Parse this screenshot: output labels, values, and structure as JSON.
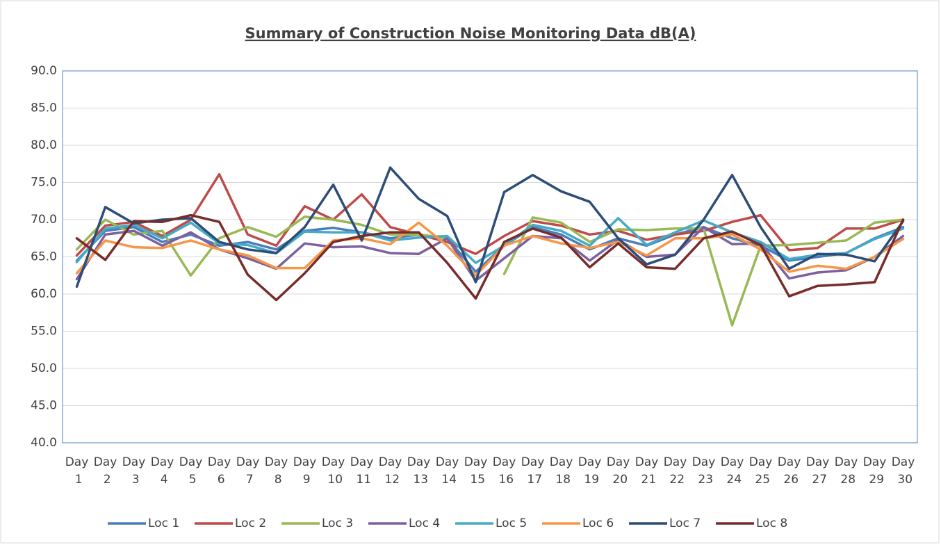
{
  "chart_data": {
    "type": "line",
    "title": "Summary of Construction Noise Monitoring Data dB(A)",
    "categories": [
      "Day 1",
      "Day 2",
      "Day 3",
      "Day 4",
      "Day 5",
      "Day 6",
      "Day 7",
      "Day 8",
      "Day 9",
      "Day 10",
      "Day 11",
      "Day 12",
      "Day 13",
      "Day 14",
      "Day 15",
      "Day 16",
      "Day 17",
      "Day 18",
      "Day 19",
      "Day 20",
      "Day 21",
      "Day 22",
      "Day 23",
      "Day 24",
      "Day 25",
      "Day 26",
      "Day 27",
      "Day 28",
      "Day 29",
      "Day 30"
    ],
    "series": [
      {
        "name": "Loc 1",
        "color": "#4a7ebb",
        "values": [
          64.5,
          68.5,
          69.0,
          67.0,
          68.0,
          66.5,
          67.0,
          66.0,
          68.5,
          68.9,
          68.3,
          67.5,
          68.0,
          67.5,
          63.0,
          66.5,
          69.0,
          68.0,
          66.0,
          67.5,
          66.5,
          68.0,
          69.0,
          67.5,
          66.5,
          64.5,
          65.0,
          65.5,
          67.5,
          69.0
        ]
      },
      {
        "name": "Loc 2",
        "color": "#be4b48",
        "values": [
          65.2,
          69.2,
          69.7,
          67.8,
          70.0,
          76.1,
          68.0,
          66.5,
          71.8,
          70.0,
          73.4,
          69.0,
          68.0,
          67.0,
          65.4,
          67.8,
          69.8,
          69.2,
          68.0,
          68.5,
          67.3,
          68.0,
          68.5,
          69.7,
          70.6,
          65.9,
          66.2,
          68.8,
          68.8,
          70.0
        ]
      },
      {
        "name": "Loc 3",
        "color": "#98b954",
        "values": [
          66.0,
          70.0,
          68.0,
          68.5,
          62.5,
          67.5,
          69.0,
          67.7,
          70.4,
          70.0,
          69.3,
          68.0,
          68.0,
          67.5,
          null,
          62.7,
          70.3,
          69.6,
          67.0,
          68.7,
          68.6,
          68.8,
          68.8,
          55.8,
          66.5,
          66.6,
          66.9,
          67.2,
          69.6,
          70.0
        ]
      },
      {
        "name": "Loc 4",
        "color": "#7d60a0",
        "values": [
          62.0,
          68.0,
          68.5,
          66.5,
          68.3,
          66.0,
          64.8,
          63.4,
          66.8,
          66.3,
          66.4,
          65.5,
          65.4,
          67.5,
          61.8,
          64.8,
          67.8,
          67.5,
          64.5,
          67.3,
          65.0,
          65.3,
          69.0,
          66.7,
          66.8,
          62.1,
          62.9,
          63.2,
          65.0,
          67.8
        ]
      },
      {
        "name": "Loc 5",
        "color": "#46aac5",
        "values": [
          64.3,
          68.8,
          69.3,
          67.5,
          69.6,
          66.8,
          66.6,
          65.5,
          68.4,
          68.3,
          68.3,
          67.2,
          67.6,
          67.8,
          64.2,
          66.5,
          69.3,
          68.5,
          66.5,
          70.2,
          66.6,
          68.3,
          69.9,
          68.3,
          67.0,
          64.7,
          65.3,
          65.5,
          67.4,
          68.8
        ]
      },
      {
        "name": "Loc 6",
        "color": "#f79646",
        "values": [
          62.8,
          67.2,
          66.3,
          66.2,
          67.2,
          66.0,
          65.2,
          63.5,
          63.5,
          67.2,
          67.5,
          66.7,
          69.6,
          66.5,
          62.5,
          66.5,
          67.8,
          66.8,
          66.2,
          67.0,
          65.2,
          67.5,
          67.5,
          68.0,
          66.0,
          63.0,
          63.8,
          63.4,
          65.0,
          67.4
        ]
      },
      {
        "name": "Loc 7",
        "color": "#2c4d75",
        "values": [
          61.0,
          71.7,
          69.5,
          70.0,
          70.2,
          67.0,
          66.0,
          65.5,
          69.0,
          74.7,
          67.2,
          77.0,
          72.8,
          70.5,
          61.6,
          73.7,
          76.0,
          73.8,
          72.4,
          67.5,
          64.0,
          65.3,
          70.0,
          76.0,
          69.0,
          63.4,
          65.4,
          65.3,
          64.4,
          69.8
        ]
      },
      {
        "name": "Loc 8",
        "color": "#772c2a",
        "values": [
          67.5,
          64.6,
          69.8,
          69.7,
          70.6,
          69.7,
          62.6,
          59.2,
          62.8,
          67.0,
          67.8,
          68.3,
          68.3,
          64.2,
          59.4,
          67.0,
          68.8,
          67.6,
          63.6,
          66.8,
          63.6,
          63.4,
          67.5,
          68.4,
          66.6,
          59.7,
          61.1,
          61.3,
          61.6,
          70.0
        ]
      }
    ],
    "ylim": [
      40,
      90
    ],
    "yticks": [
      {
        "value": 40,
        "label": "40.0"
      },
      {
        "value": 45,
        "label": "45.0"
      },
      {
        "value": 50,
        "label": "50.0"
      },
      {
        "value": 55,
        "label": "55.0"
      },
      {
        "value": 60,
        "label": "60.0"
      },
      {
        "value": 65,
        "label": "65.0"
      },
      {
        "value": 70,
        "label": "70.0"
      },
      {
        "value": 75,
        "label": "75.0"
      },
      {
        "value": 80,
        "label": "80.0"
      },
      {
        "value": 85,
        "label": "85.0"
      },
      {
        "value": 90,
        "label": "90.0"
      }
    ],
    "grid": true,
    "legend": "bottom"
  }
}
